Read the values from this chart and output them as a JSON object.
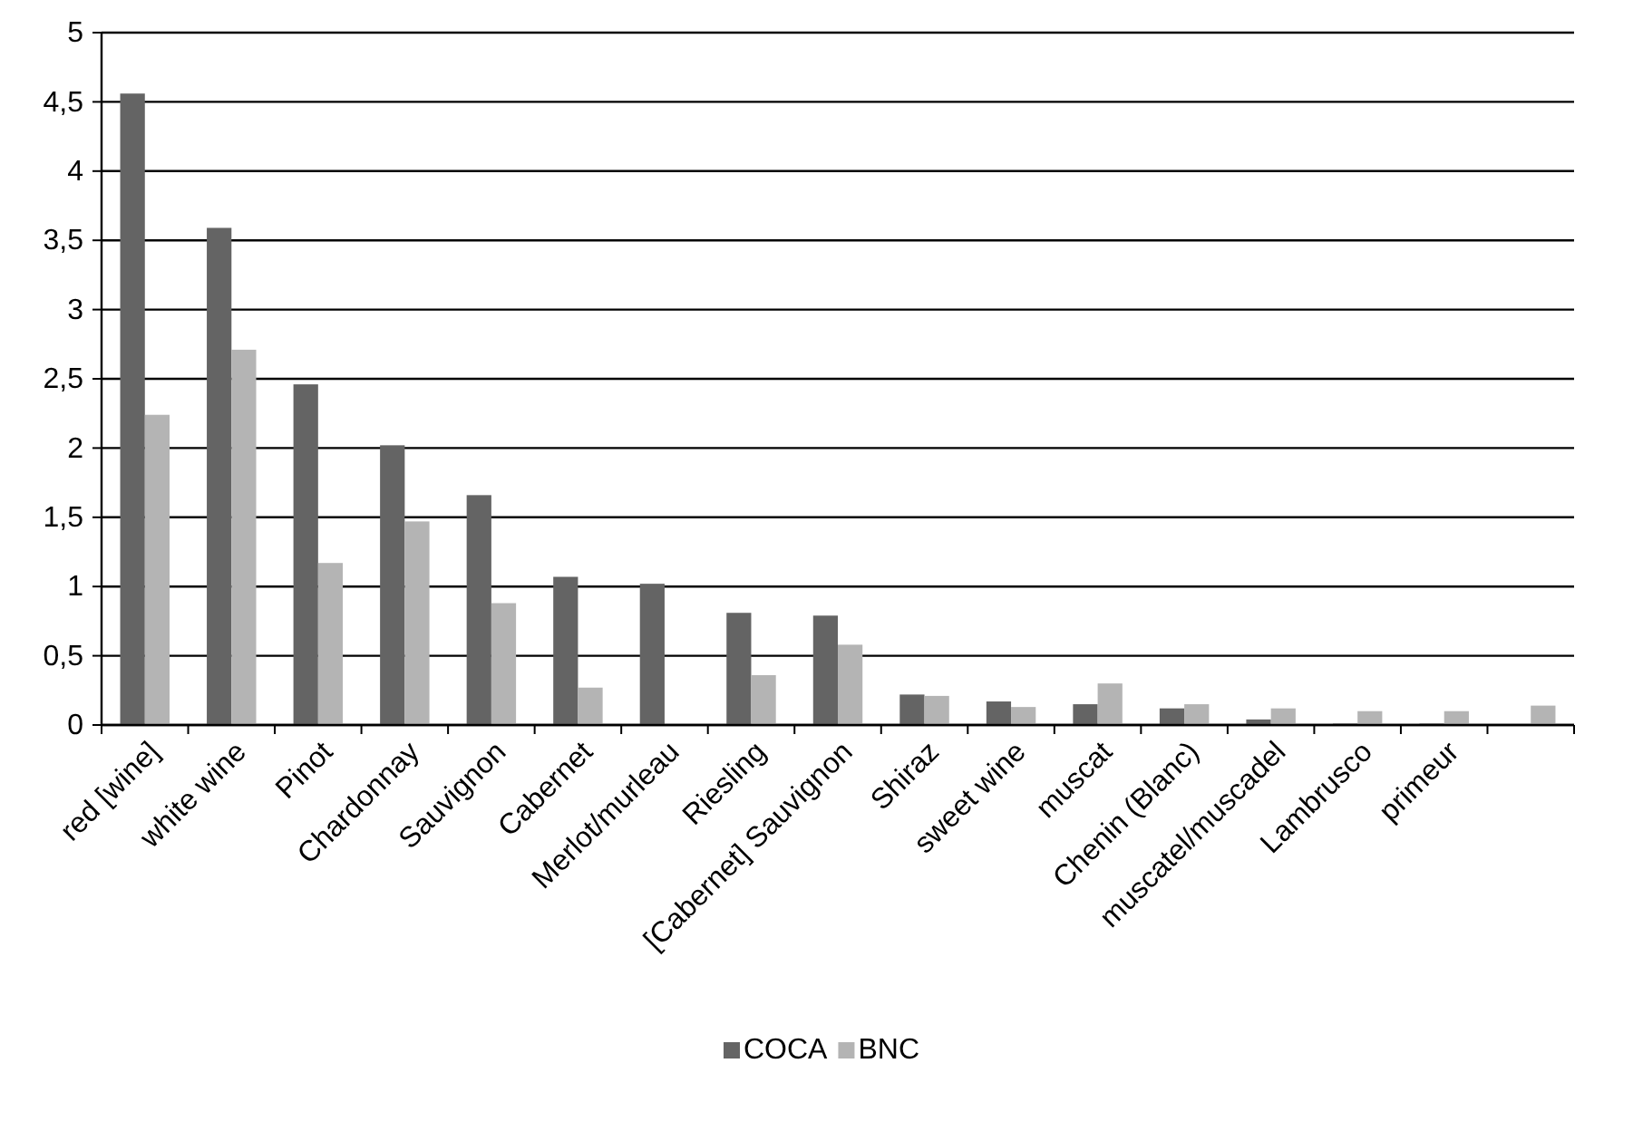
{
  "chart_data": {
    "type": "bar",
    "categories": [
      "red [wine]",
      "white wine",
      "Pinot",
      "Chardonnay",
      "Sauvignon",
      "Cabernet",
      "Merlot/murleau",
      "Riesling",
      "[Cabernet] Sauvignon",
      "Shiraz",
      "sweet wine",
      "muscat",
      "Chenin (Blanc)",
      "muscatel/muscadel",
      "Lambrusco",
      "primeur",
      null
    ],
    "series": [
      {
        "name": "COCA",
        "color": "#646464",
        "values": [
          4.56,
          3.59,
          2.46,
          2.02,
          1.66,
          1.07,
          1.02,
          0.81,
          0.79,
          0.22,
          0.17,
          0.15,
          0.12,
          0.04,
          0.01,
          0.01,
          0
        ]
      },
      {
        "name": "BNC",
        "color": "#b4b4b4",
        "values": [
          2.24,
          2.71,
          1.17,
          1.47,
          0.88,
          0.27,
          0,
          0.36,
          0.58,
          0.21,
          0.13,
          0.3,
          0.15,
          0.12,
          0.1,
          0.1,
          0.14
        ]
      }
    ],
    "ylim": [
      0,
      5
    ],
    "yticks": [
      0,
      {
        "value": 0.5,
        "label": "0,5"
      },
      1,
      {
        "value": 1.5,
        "label": "1,5"
      },
      2,
      {
        "value": 2.5,
        "label": "2,5"
      },
      3,
      {
        "value": 3.5,
        "label": "3,5"
      },
      4,
      {
        "value": 4.5,
        "label": "4,5"
      },
      5
    ],
    "grid": "y",
    "legend": "bottom"
  }
}
